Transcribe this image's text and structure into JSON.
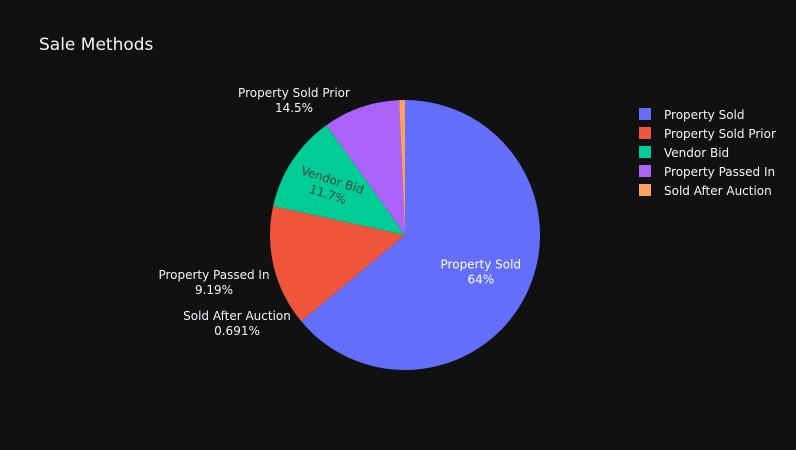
{
  "chart_data": {
    "type": "pie",
    "title": "Sale Methods",
    "categories": [
      "Property Sold",
      "Property Sold Prior",
      "Vendor Bid",
      "Property Passed In",
      "Sold After Auction"
    ],
    "values": [
      64.0,
      14.5,
      11.7,
      9.19,
      0.691
    ],
    "percent_labels": [
      "64%",
      "14.5%",
      "11.7%",
      "9.19%",
      "0.691%"
    ],
    "colors": [
      "#636efa",
      "#ef553b",
      "#00cc96",
      "#ab63fa",
      "#ffa15a"
    ],
    "legend_position": "top-right",
    "background": "#111111"
  }
}
